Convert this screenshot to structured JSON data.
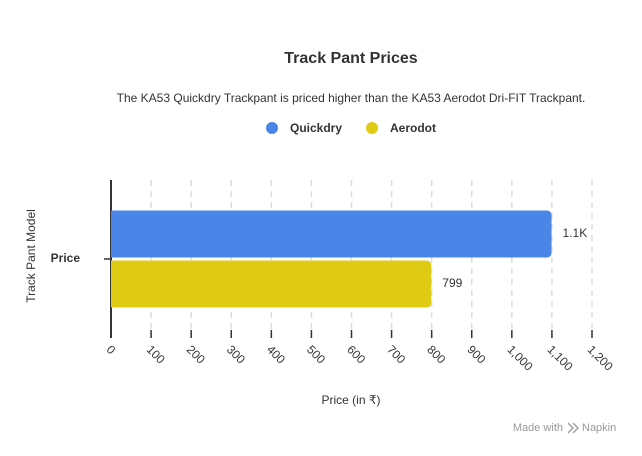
{
  "chart_data": {
    "type": "hbar",
    "title": "Track Pant Prices",
    "subtitle": "The KA53 Quickdry Trackpant is priced higher than the KA53 Aerodot Dri-FIT Trackpant.",
    "categories": [
      "Price"
    ],
    "series": [
      {
        "name": "Quickdry",
        "color": "#4a86e8",
        "values": [
          1099
        ],
        "value_labels": [
          "1.1K"
        ]
      },
      {
        "name": "Aerodot",
        "color": "#e0cb14",
        "values": [
          799
        ]
      }
    ],
    "x_label": "Price (in ₹)",
    "y_label": "Track Pant Model",
    "xlim": [
      0,
      1200
    ],
    "xticks": [
      0,
      100,
      200,
      300,
      400,
      500,
      600,
      700,
      800,
      900,
      {
        "value": 1000,
        "label": "1,000"
      },
      {
        "value": 1100,
        "label": "1,100"
      },
      {
        "value": 1200,
        "label": "1,200"
      }
    ],
    "grid": true,
    "legend": "top"
  },
  "footer": {
    "text": "Made with",
    "brand": "Napkin"
  }
}
